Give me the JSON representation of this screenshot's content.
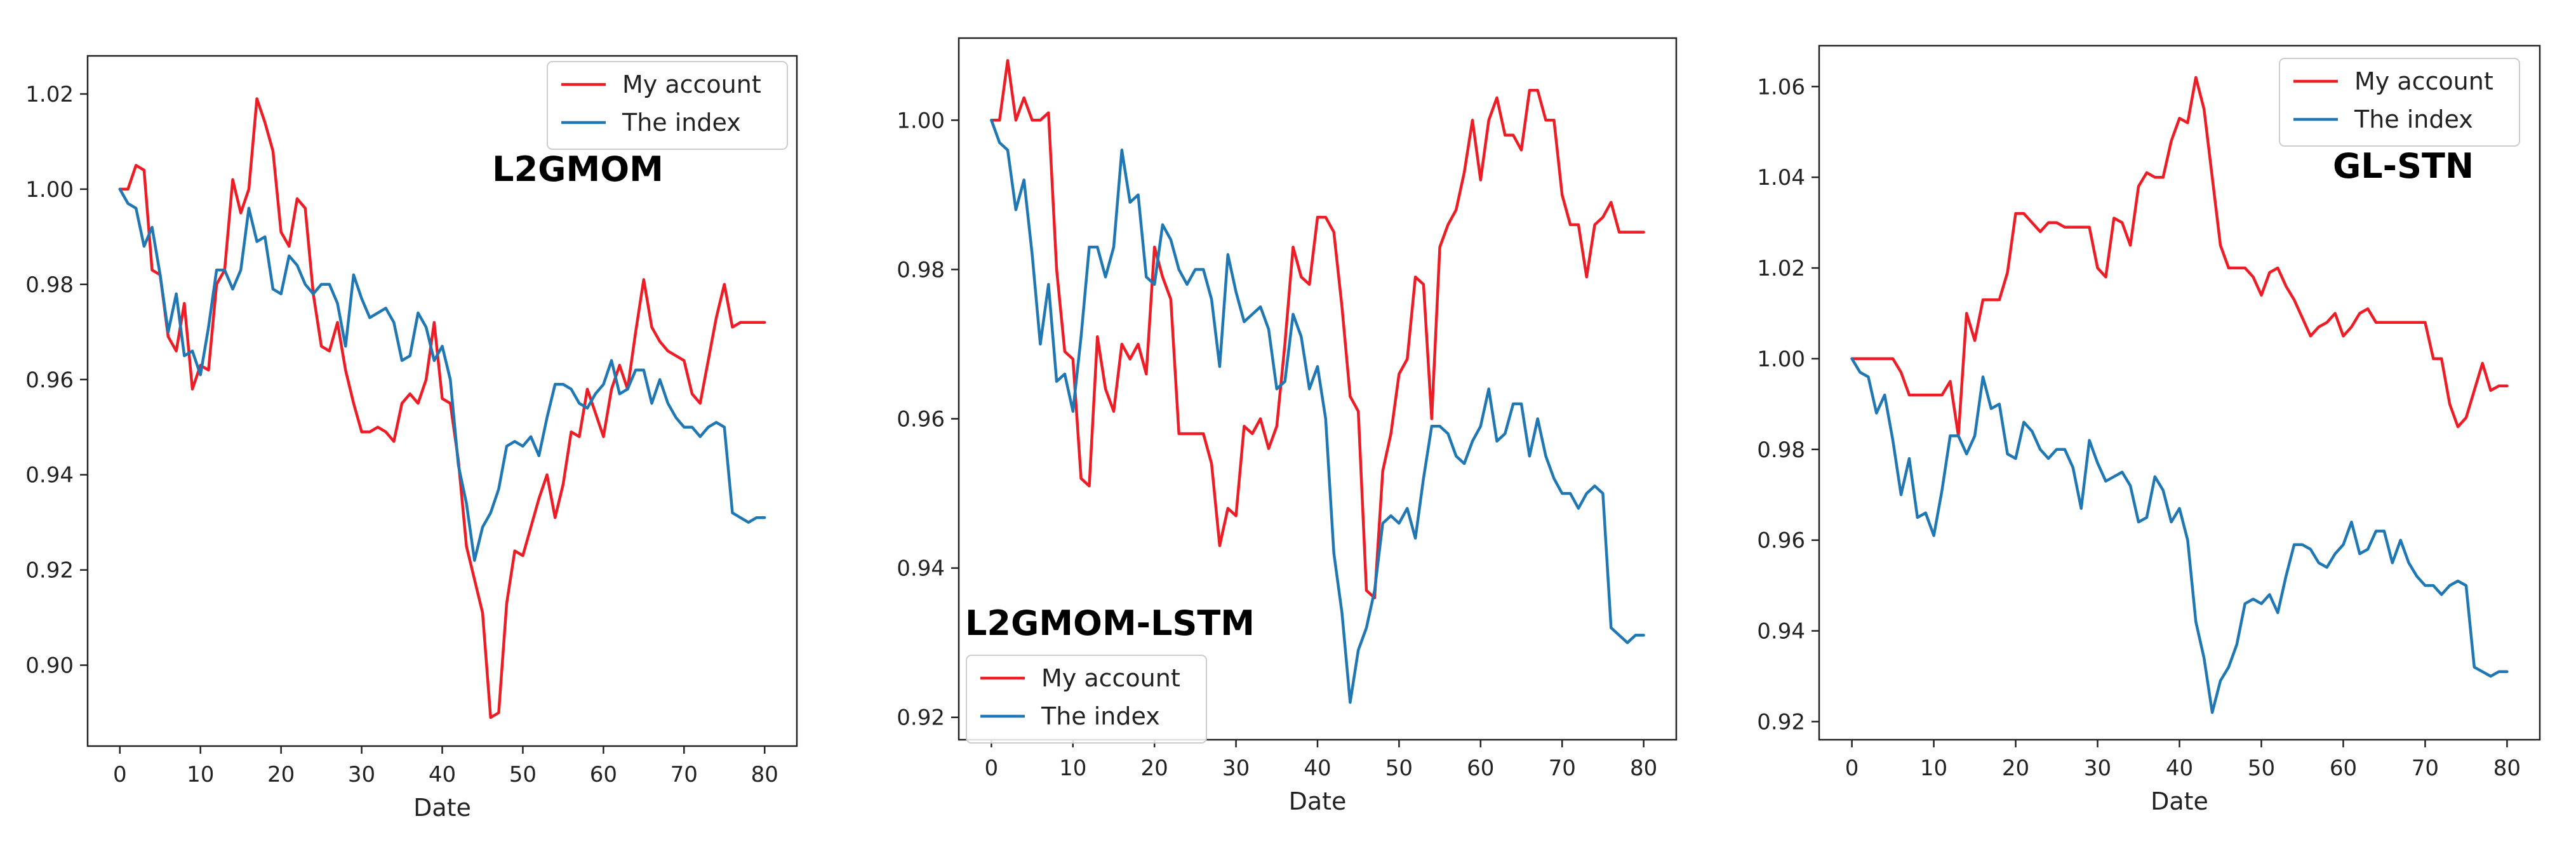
{
  "colors": {
    "account": "#ee1c25",
    "index": "#1f77b4",
    "axis": "#222222",
    "legend_border": "#cccccc"
  },
  "chart_data": [
    {
      "type": "line",
      "title": "L2GMOM",
      "xlabel": "Date",
      "ylabel": "",
      "xlim": [
        -4,
        84
      ],
      "ylim": [
        0.883,
        1.028
      ],
      "xticks": [
        0,
        10,
        20,
        30,
        40,
        50,
        60,
        70,
        80
      ],
      "yticks": [
        0.9,
        0.92,
        0.94,
        0.96,
        0.98,
        1.0,
        1.02
      ],
      "ytick_labels": [
        "0.90",
        "0.92",
        "0.94",
        "0.96",
        "0.98",
        "1.00",
        "1.02"
      ],
      "legend": {
        "position": "top-right",
        "entries": [
          "My account",
          "The index"
        ]
      },
      "series": [
        {
          "name": "My account",
          "x": [
            0,
            1,
            2,
            3,
            4,
            5,
            6,
            7,
            8,
            9,
            10,
            11,
            12,
            13,
            14,
            15,
            16,
            17,
            18,
            19,
            20,
            21,
            22,
            23,
            24,
            25,
            26,
            27,
            28,
            29,
            30,
            31,
            32,
            33,
            34,
            35,
            36,
            37,
            38,
            39,
            40,
            41,
            42,
            43,
            44,
            45,
            46,
            47,
            48,
            49,
            50,
            51,
            52,
            53,
            54,
            55,
            56,
            57,
            58,
            59,
            60,
            61,
            62,
            63,
            64,
            65,
            66,
            67,
            68,
            69,
            70,
            71,
            72,
            73,
            74,
            75,
            76,
            77,
            78,
            79,
            80
          ],
          "values": [
            1.0,
            1.0,
            1.005,
            1.004,
            0.983,
            0.982,
            0.969,
            0.966,
            0.976,
            0.958,
            0.963,
            0.962,
            0.98,
            0.983,
            1.002,
            0.995,
            1.0,
            1.019,
            1.014,
            1.008,
            0.991,
            0.988,
            0.998,
            0.996,
            0.978,
            0.967,
            0.966,
            0.972,
            0.962,
            0.955,
            0.949,
            0.949,
            0.95,
            0.949,
            0.947,
            0.955,
            0.957,
            0.955,
            0.96,
            0.972,
            0.956,
            0.955,
            0.943,
            0.925,
            0.918,
            0.911,
            0.889,
            0.89,
            0.913,
            0.924,
            0.923,
            0.929,
            0.935,
            0.94,
            0.931,
            0.938,
            0.949,
            0.948,
            0.958,
            0.953,
            0.948,
            0.958,
            0.963,
            0.958,
            0.97,
            0.981,
            0.971,
            0.968,
            0.966,
            0.965,
            0.964,
            0.957,
            0.955,
            0.964,
            0.973,
            0.98,
            0.971,
            0.972,
            0.972,
            0.972,
            0.972
          ]
        },
        {
          "name": "The index",
          "x": [
            0,
            1,
            2,
            3,
            4,
            5,
            6,
            7,
            8,
            9,
            10,
            11,
            12,
            13,
            14,
            15,
            16,
            17,
            18,
            19,
            20,
            21,
            22,
            23,
            24,
            25,
            26,
            27,
            28,
            29,
            30,
            31,
            32,
            33,
            34,
            35,
            36,
            37,
            38,
            39,
            40,
            41,
            42,
            43,
            44,
            45,
            46,
            47,
            48,
            49,
            50,
            51,
            52,
            53,
            54,
            55,
            56,
            57,
            58,
            59,
            60,
            61,
            62,
            63,
            64,
            65,
            66,
            67,
            68,
            69,
            70,
            71,
            72,
            73,
            74,
            75,
            76,
            77,
            78,
            79,
            80
          ],
          "values": [
            1.0,
            0.997,
            0.996,
            0.988,
            0.992,
            0.982,
            0.97,
            0.978,
            0.965,
            0.966,
            0.961,
            0.971,
            0.983,
            0.983,
            0.979,
            0.983,
            0.996,
            0.989,
            0.99,
            0.979,
            0.978,
            0.986,
            0.984,
            0.98,
            0.978,
            0.98,
            0.98,
            0.976,
            0.967,
            0.982,
            0.977,
            0.973,
            0.974,
            0.975,
            0.972,
            0.964,
            0.965,
            0.974,
            0.971,
            0.964,
            0.967,
            0.96,
            0.942,
            0.934,
            0.922,
            0.929,
            0.932,
            0.937,
            0.946,
            0.947,
            0.946,
            0.948,
            0.944,
            0.952,
            0.959,
            0.959,
            0.958,
            0.955,
            0.954,
            0.957,
            0.959,
            0.964,
            0.957,
            0.958,
            0.962,
            0.962,
            0.955,
            0.96,
            0.955,
            0.952,
            0.95,
            0.95,
            0.948,
            0.95,
            0.951,
            0.95,
            0.932,
            0.931,
            0.93,
            0.931,
            0.931
          ]
        }
      ]
    },
    {
      "type": "line",
      "title": "L2GMOM-LSTM",
      "xlabel": "Date",
      "ylabel": "",
      "xlim": [
        -4,
        84
      ],
      "ylim": [
        0.917,
        1.011
      ],
      "xticks": [
        0,
        10,
        20,
        30,
        40,
        50,
        60,
        70,
        80
      ],
      "yticks": [
        0.92,
        0.94,
        0.96,
        0.98,
        1.0
      ],
      "ytick_labels": [
        "0.92",
        "0.94",
        "0.96",
        "0.98",
        "1.00"
      ],
      "legend": {
        "position": "lower-left",
        "entries": [
          "My account",
          "The index"
        ]
      },
      "series": [
        {
          "name": "My account",
          "x": [
            0,
            1,
            2,
            3,
            4,
            5,
            6,
            7,
            8,
            9,
            10,
            11,
            12,
            13,
            14,
            15,
            16,
            17,
            18,
            19,
            20,
            21,
            22,
            23,
            24,
            25,
            26,
            27,
            28,
            29,
            30,
            31,
            32,
            33,
            34,
            35,
            36,
            37,
            38,
            39,
            40,
            41,
            42,
            43,
            44,
            45,
            46,
            47,
            48,
            49,
            50,
            51,
            52,
            53,
            54,
            55,
            56,
            57,
            58,
            59,
            60,
            61,
            62,
            63,
            64,
            65,
            66,
            67,
            68,
            69,
            70,
            71,
            72,
            73,
            74,
            75,
            76,
            77,
            78,
            79,
            80
          ],
          "values": [
            1.0,
            1.0,
            1.008,
            1.0,
            1.003,
            1.0,
            1.0,
            1.001,
            0.98,
            0.969,
            0.968,
            0.952,
            0.951,
            0.971,
            0.964,
            0.961,
            0.97,
            0.968,
            0.97,
            0.966,
            0.983,
            0.979,
            0.976,
            0.958,
            0.958,
            0.958,
            0.958,
            0.954,
            0.943,
            0.948,
            0.947,
            0.959,
            0.958,
            0.96,
            0.956,
            0.959,
            0.97,
            0.983,
            0.979,
            0.978,
            0.987,
            0.987,
            0.985,
            0.975,
            0.963,
            0.961,
            0.937,
            0.936,
            0.953,
            0.958,
            0.966,
            0.968,
            0.979,
            0.978,
            0.96,
            0.983,
            0.986,
            0.988,
            0.993,
            1.0,
            0.992,
            1.0,
            1.003,
            0.998,
            0.998,
            0.996,
            1.004,
            1.004,
            1.0,
            1.0,
            0.99,
            0.986,
            0.986,
            0.979,
            0.986,
            0.987,
            0.989,
            0.985,
            0.985,
            0.985,
            0.985
          ]
        },
        {
          "name": "The index",
          "x": [
            0,
            1,
            2,
            3,
            4,
            5,
            6,
            7,
            8,
            9,
            10,
            11,
            12,
            13,
            14,
            15,
            16,
            17,
            18,
            19,
            20,
            21,
            22,
            23,
            24,
            25,
            26,
            27,
            28,
            29,
            30,
            31,
            32,
            33,
            34,
            35,
            36,
            37,
            38,
            39,
            40,
            41,
            42,
            43,
            44,
            45,
            46,
            47,
            48,
            49,
            50,
            51,
            52,
            53,
            54,
            55,
            56,
            57,
            58,
            59,
            60,
            61,
            62,
            63,
            64,
            65,
            66,
            67,
            68,
            69,
            70,
            71,
            72,
            73,
            74,
            75,
            76,
            77,
            78,
            79,
            80
          ],
          "values": [
            1.0,
            0.997,
            0.996,
            0.988,
            0.992,
            0.982,
            0.97,
            0.978,
            0.965,
            0.966,
            0.961,
            0.971,
            0.983,
            0.983,
            0.979,
            0.983,
            0.996,
            0.989,
            0.99,
            0.979,
            0.978,
            0.986,
            0.984,
            0.98,
            0.978,
            0.98,
            0.98,
            0.976,
            0.967,
            0.982,
            0.977,
            0.973,
            0.974,
            0.975,
            0.972,
            0.964,
            0.965,
            0.974,
            0.971,
            0.964,
            0.967,
            0.96,
            0.942,
            0.934,
            0.922,
            0.929,
            0.932,
            0.937,
            0.946,
            0.947,
            0.946,
            0.948,
            0.944,
            0.952,
            0.959,
            0.959,
            0.958,
            0.955,
            0.954,
            0.957,
            0.959,
            0.964,
            0.957,
            0.958,
            0.962,
            0.962,
            0.955,
            0.96,
            0.955,
            0.952,
            0.95,
            0.95,
            0.948,
            0.95,
            0.951,
            0.95,
            0.932,
            0.931,
            0.93,
            0.931,
            0.931
          ]
        }
      ]
    },
    {
      "type": "line",
      "title": "GL-STN",
      "xlabel": "Date",
      "ylabel": "",
      "xlim": [
        -4,
        84
      ],
      "ylim": [
        0.916,
        1.069
      ],
      "xticks": [
        0,
        10,
        20,
        30,
        40,
        50,
        60,
        70,
        80
      ],
      "yticks": [
        0.92,
        0.94,
        0.96,
        0.98,
        1.0,
        1.02,
        1.04,
        1.06
      ],
      "ytick_labels": [
        "0.92",
        "0.94",
        "0.96",
        "0.98",
        "1.00",
        "1.02",
        "1.04",
        "1.06"
      ],
      "legend": {
        "position": "top-right",
        "entries": [
          "My account",
          "The index"
        ]
      },
      "series": [
        {
          "name": "My account",
          "x": [
            0,
            1,
            2,
            3,
            4,
            5,
            6,
            7,
            8,
            9,
            10,
            11,
            12,
            13,
            14,
            15,
            16,
            17,
            18,
            19,
            20,
            21,
            22,
            23,
            24,
            25,
            26,
            27,
            28,
            29,
            30,
            31,
            32,
            33,
            34,
            35,
            36,
            37,
            38,
            39,
            40,
            41,
            42,
            43,
            44,
            45,
            46,
            47,
            48,
            49,
            50,
            51,
            52,
            53,
            54,
            55,
            56,
            57,
            58,
            59,
            60,
            61,
            62,
            63,
            64,
            65,
            66,
            67,
            68,
            69,
            70,
            71,
            72,
            73,
            74,
            75,
            76,
            77,
            78,
            79,
            80
          ],
          "values": [
            1.0,
            1.0,
            1.0,
            1.0,
            1.0,
            1.0,
            0.997,
            0.992,
            0.992,
            0.992,
            0.992,
            0.992,
            0.995,
            0.983,
            1.01,
            1.004,
            1.013,
            1.013,
            1.013,
            1.019,
            1.032,
            1.032,
            1.03,
            1.028,
            1.03,
            1.03,
            1.029,
            1.029,
            1.029,
            1.029,
            1.02,
            1.018,
            1.031,
            1.03,
            1.025,
            1.038,
            1.041,
            1.04,
            1.04,
            1.048,
            1.053,
            1.052,
            1.062,
            1.055,
            1.04,
            1.025,
            1.02,
            1.02,
            1.02,
            1.018,
            1.014,
            1.019,
            1.02,
            1.016,
            1.013,
            1.009,
            1.005,
            1.007,
            1.008,
            1.01,
            1.005,
            1.007,
            1.01,
            1.011,
            1.008,
            1.008,
            1.008,
            1.008,
            1.008,
            1.008,
            1.008,
            1.0,
            1.0,
            0.99,
            0.985,
            0.987,
            0.993,
            0.999,
            0.993,
            0.994,
            0.994
          ]
        },
        {
          "name": "The index",
          "x": [
            0,
            1,
            2,
            3,
            4,
            5,
            6,
            7,
            8,
            9,
            10,
            11,
            12,
            13,
            14,
            15,
            16,
            17,
            18,
            19,
            20,
            21,
            22,
            23,
            24,
            25,
            26,
            27,
            28,
            29,
            30,
            31,
            32,
            33,
            34,
            35,
            36,
            37,
            38,
            39,
            40,
            41,
            42,
            43,
            44,
            45,
            46,
            47,
            48,
            49,
            50,
            51,
            52,
            53,
            54,
            55,
            56,
            57,
            58,
            59,
            60,
            61,
            62,
            63,
            64,
            65,
            66,
            67,
            68,
            69,
            70,
            71,
            72,
            73,
            74,
            75,
            76,
            77,
            78,
            79,
            80
          ],
          "values": [
            1.0,
            0.997,
            0.996,
            0.988,
            0.992,
            0.982,
            0.97,
            0.978,
            0.965,
            0.966,
            0.961,
            0.971,
            0.983,
            0.983,
            0.979,
            0.983,
            0.996,
            0.989,
            0.99,
            0.979,
            0.978,
            0.986,
            0.984,
            0.98,
            0.978,
            0.98,
            0.98,
            0.976,
            0.967,
            0.982,
            0.977,
            0.973,
            0.974,
            0.975,
            0.972,
            0.964,
            0.965,
            0.974,
            0.971,
            0.964,
            0.967,
            0.96,
            0.942,
            0.934,
            0.922,
            0.929,
            0.932,
            0.937,
            0.946,
            0.947,
            0.946,
            0.948,
            0.944,
            0.952,
            0.959,
            0.959,
            0.958,
            0.955,
            0.954,
            0.957,
            0.959,
            0.964,
            0.957,
            0.958,
            0.962,
            0.962,
            0.955,
            0.96,
            0.955,
            0.952,
            0.95,
            0.95,
            0.948,
            0.95,
            0.951,
            0.95,
            0.932,
            0.931,
            0.93,
            0.931,
            0.931
          ]
        }
      ]
    }
  ]
}
